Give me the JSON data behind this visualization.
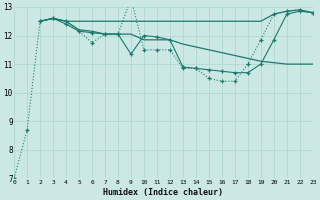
{
  "bg_color": "#cce8e4",
  "grid_color": "#b0d8d2",
  "line_color": "#1a7a6e",
  "xlabel": "Humidex (Indice chaleur)",
  "xlim": [
    0,
    23
  ],
  "ylim": [
    7,
    13
  ],
  "yticks": [
    7,
    8,
    9,
    10,
    11,
    12,
    13
  ],
  "xticks": [
    0,
    1,
    2,
    3,
    4,
    5,
    6,
    7,
    8,
    9,
    10,
    11,
    12,
    13,
    14,
    15,
    16,
    17,
    18,
    19,
    20,
    21,
    22,
    23
  ],
  "line1_x": [
    0,
    1,
    2,
    3,
    4,
    5,
    6,
    7,
    8,
    9,
    10,
    11,
    12,
    13,
    14,
    15,
    16,
    17,
    18,
    19,
    20,
    21,
    22,
    23
  ],
  "line1_y": [
    7.0,
    8.7,
    12.5,
    12.6,
    12.5,
    12.15,
    11.75,
    12.05,
    12.05,
    13.3,
    11.5,
    11.5,
    11.5,
    10.85,
    10.85,
    10.5,
    10.4,
    10.4,
    11.0,
    11.85,
    12.75,
    12.85,
    12.9,
    12.8
  ],
  "line2_x": [
    2,
    3,
    4,
    9,
    10,
    11,
    12,
    13,
    14,
    15,
    16,
    17,
    18,
    19,
    20,
    21,
    22,
    23
  ],
  "line2_y": [
    12.5,
    12.6,
    12.5,
    12.5,
    12.5,
    12.5,
    12.5,
    12.5,
    12.5,
    12.5,
    12.5,
    12.5,
    12.5,
    12.5,
    12.75,
    12.85,
    12.9,
    12.8
  ],
  "line3_x": [
    2,
    3,
    4,
    5,
    6,
    7,
    8,
    9,
    10,
    11,
    12,
    13,
    14,
    15,
    16,
    17,
    18,
    19,
    20,
    21,
    22,
    23
  ],
  "line3_y": [
    12.5,
    12.6,
    12.5,
    12.2,
    12.15,
    12.05,
    12.05,
    12.05,
    11.85,
    11.85,
    11.85,
    11.7,
    11.6,
    11.5,
    11.4,
    11.3,
    11.2,
    11.1,
    11.05,
    11.0,
    11.0,
    11.0
  ],
  "line4_x": [
    2,
    3,
    4,
    5,
    6,
    7,
    8,
    9,
    10,
    11,
    12,
    13,
    14,
    15,
    16,
    17,
    18,
    19,
    20,
    21,
    22,
    23
  ],
  "line4_y": [
    12.5,
    12.6,
    12.4,
    12.15,
    12.1,
    12.05,
    12.05,
    11.35,
    12.0,
    11.95,
    11.85,
    10.9,
    10.85,
    10.8,
    10.75,
    10.7,
    10.7,
    11.0,
    11.85,
    12.75,
    12.85,
    12.8
  ]
}
